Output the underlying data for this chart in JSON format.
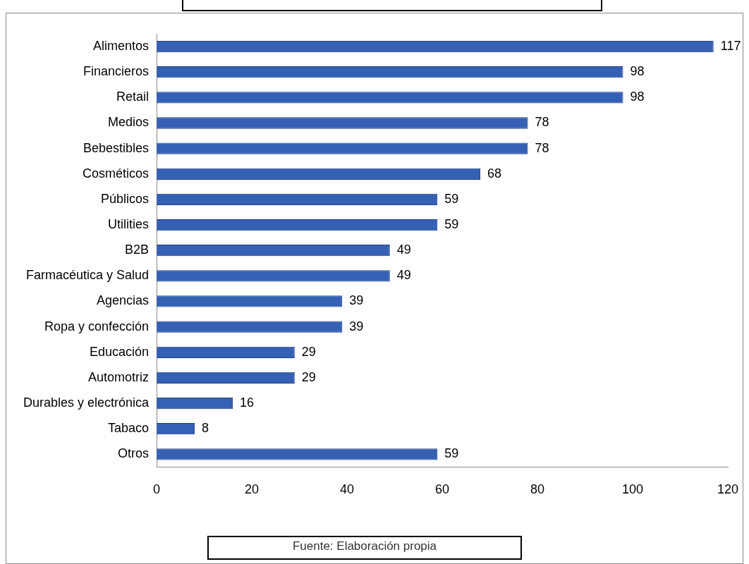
{
  "chart_data": {
    "type": "bar",
    "orientation": "horizontal",
    "categories": [
      "Alimentos",
      "Financieros",
      "Retail",
      "Medios",
      "Bebestibles",
      "Cosméticos",
      "Públicos",
      "Utilities",
      "B2B",
      "Farmacéutica y Salud",
      "Agencias",
      "Ropa y confección",
      "Educación",
      "Automotriz",
      "Durables y electrónica",
      "Tabaco",
      "Otros"
    ],
    "values": [
      117,
      98,
      98,
      78,
      78,
      68,
      59,
      59,
      49,
      49,
      39,
      39,
      29,
      29,
      16,
      8,
      59
    ],
    "color": "#3561b5",
    "xlim": [
      0,
      120
    ],
    "xticks": [
      0,
      20,
      40,
      60,
      80,
      100,
      120
    ],
    "grid": false,
    "legend": false,
    "data_labels": true,
    "annotations": [
      "Fuente: Elaboración propia"
    ]
  }
}
